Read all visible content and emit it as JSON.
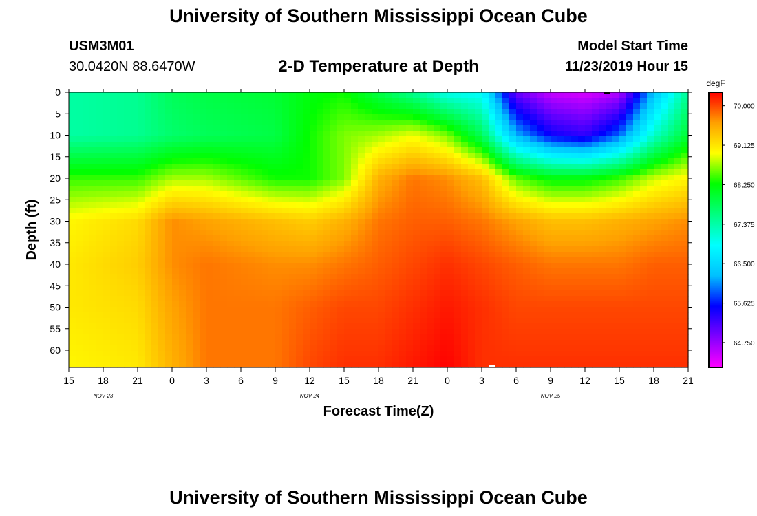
{
  "header": {
    "title": "University of Southern Mississippi Ocean Cube",
    "footer_title": "University of Southern Mississippi Ocean Cube",
    "station_id": "USM3M01",
    "location": "30.0420N 88.6470W",
    "plot_title": "2-D Temperature at Depth",
    "model_start_label": "Model Start Time",
    "model_start_value": "11/23/2019 Hour 15"
  },
  "chart_data": {
    "type": "heatmap",
    "title": "2-D Temperature at Depth",
    "xlabel": "Forecast Time(Z)",
    "ylabel": "Depth (ft)",
    "x_tick_labels": [
      "15",
      "18",
      "21",
      "0",
      "3",
      "6",
      "9",
      "12",
      "15",
      "18",
      "21",
      "0",
      "3",
      "6",
      "9",
      "12",
      "15",
      "18",
      "21"
    ],
    "date_labels": [
      {
        "text": "NOV  23",
        "at_tick": 1
      },
      {
        "text": "NOV  24",
        "at_tick": 7
      },
      {
        "text": "NOV  25",
        "at_tick": 14
      }
    ],
    "y_tick_labels": [
      "0",
      "5",
      "10",
      "15",
      "20",
      "25",
      "30",
      "35",
      "40",
      "45",
      "50",
      "55",
      "60"
    ],
    "y_range_ft": [
      0,
      64
    ],
    "x_range_hours": [
      0,
      54
    ],
    "colorbar": {
      "unit": "degF",
      "range": [
        64.2,
        70.3
      ],
      "tick_labels": [
        "70.000",
        "69.125",
        "68.250",
        "67.375",
        "66.500",
        "65.625",
        "64.750"
      ],
      "tick_values": [
        70.0,
        69.125,
        68.25,
        67.375,
        66.5,
        65.625,
        64.75
      ],
      "colors": [
        "#ff00ff",
        "#8000ff",
        "#0000ff",
        "#00c0ff",
        "#00ffff",
        "#00ff80",
        "#00ff00",
        "#ffff00",
        "#ffa000",
        "#ff0000"
      ]
    },
    "depth_profile_stations": {
      "hours": [
        0,
        6,
        9,
        12,
        18,
        21,
        24,
        27,
        30,
        33,
        36,
        39,
        42,
        45,
        48,
        51,
        54
      ],
      "depths_ft": [
        0,
        10,
        20,
        30,
        40,
        50,
        64
      ],
      "temperatures_degF": [
        [
          67.4,
          67.5,
          67.8,
          67.9,
          68.0,
          68.2,
          68.3,
          67.9,
          67.5,
          67.0,
          66.9,
          65.0,
          64.5,
          64.4,
          64.6,
          66.3,
          67.5
        ],
        [
          67.4,
          67.5,
          67.7,
          67.8,
          67.9,
          68.3,
          68.6,
          68.7,
          68.9,
          68.6,
          67.8,
          66.2,
          65.5,
          65.3,
          65.9,
          67.2,
          68.0
        ],
        [
          68.4,
          68.4,
          68.7,
          68.7,
          68.3,
          68.3,
          68.6,
          69.5,
          69.8,
          69.7,
          69.4,
          68.5,
          68.2,
          68.2,
          68.4,
          68.8,
          69.0
        ],
        [
          69.0,
          69.2,
          69.7,
          69.6,
          69.4,
          69.3,
          69.5,
          69.8,
          69.9,
          69.9,
          69.8,
          69.6,
          69.4,
          69.4,
          69.5,
          69.6,
          69.7
        ],
        [
          69.1,
          69.3,
          69.7,
          69.8,
          69.7,
          69.7,
          69.8,
          69.9,
          70.0,
          70.1,
          70.0,
          69.9,
          69.8,
          69.8,
          69.8,
          69.9,
          69.9
        ],
        [
          69.1,
          69.2,
          69.6,
          69.8,
          69.8,
          69.9,
          70.0,
          70.0,
          70.1,
          70.2,
          70.1,
          70.0,
          70.0,
          70.0,
          70.0,
          70.0,
          70.0
        ],
        [
          69.0,
          69.1,
          69.5,
          69.8,
          69.8,
          70.0,
          70.1,
          70.1,
          70.2,
          70.3,
          70.1,
          70.1,
          70.1,
          70.1,
          70.1,
          70.1,
          70.1
        ]
      ]
    }
  }
}
